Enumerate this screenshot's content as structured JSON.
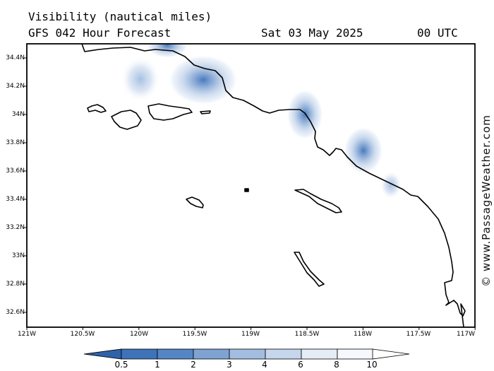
{
  "header": {
    "title": "Visibility (nautical miles)",
    "model": "GFS 042 Hour Forecast",
    "date": "Sat 03 May 2025",
    "time": "00 UTC"
  },
  "credit": "© www.PassageWeather.com",
  "axes": {
    "lat_ticks": [
      "34.4N",
      "34.2N",
      "34N",
      "33.8N",
      "33.6N",
      "33.4N",
      "33.2N",
      "33N",
      "32.8N",
      "32.6N"
    ],
    "lon_ticks": [
      "121W",
      "120.5W",
      "120W",
      "119.5W",
      "119W",
      "118.5W",
      "118W",
      "117.5W",
      "117W"
    ]
  },
  "legend": {
    "levels": [
      "0.5",
      "1",
      "2",
      "3",
      "4",
      "6",
      "8",
      "10"
    ],
    "colors": [
      "#3e73b8",
      "#5585c4",
      "#7ea3d3",
      "#a3bde0",
      "#c6d6ec",
      "#e4ecf6",
      "#f5f8fc",
      "#ffffff"
    ]
  },
  "colors": {
    "land_outline": "#000000",
    "low_visibility": "#4a7fc1"
  }
}
